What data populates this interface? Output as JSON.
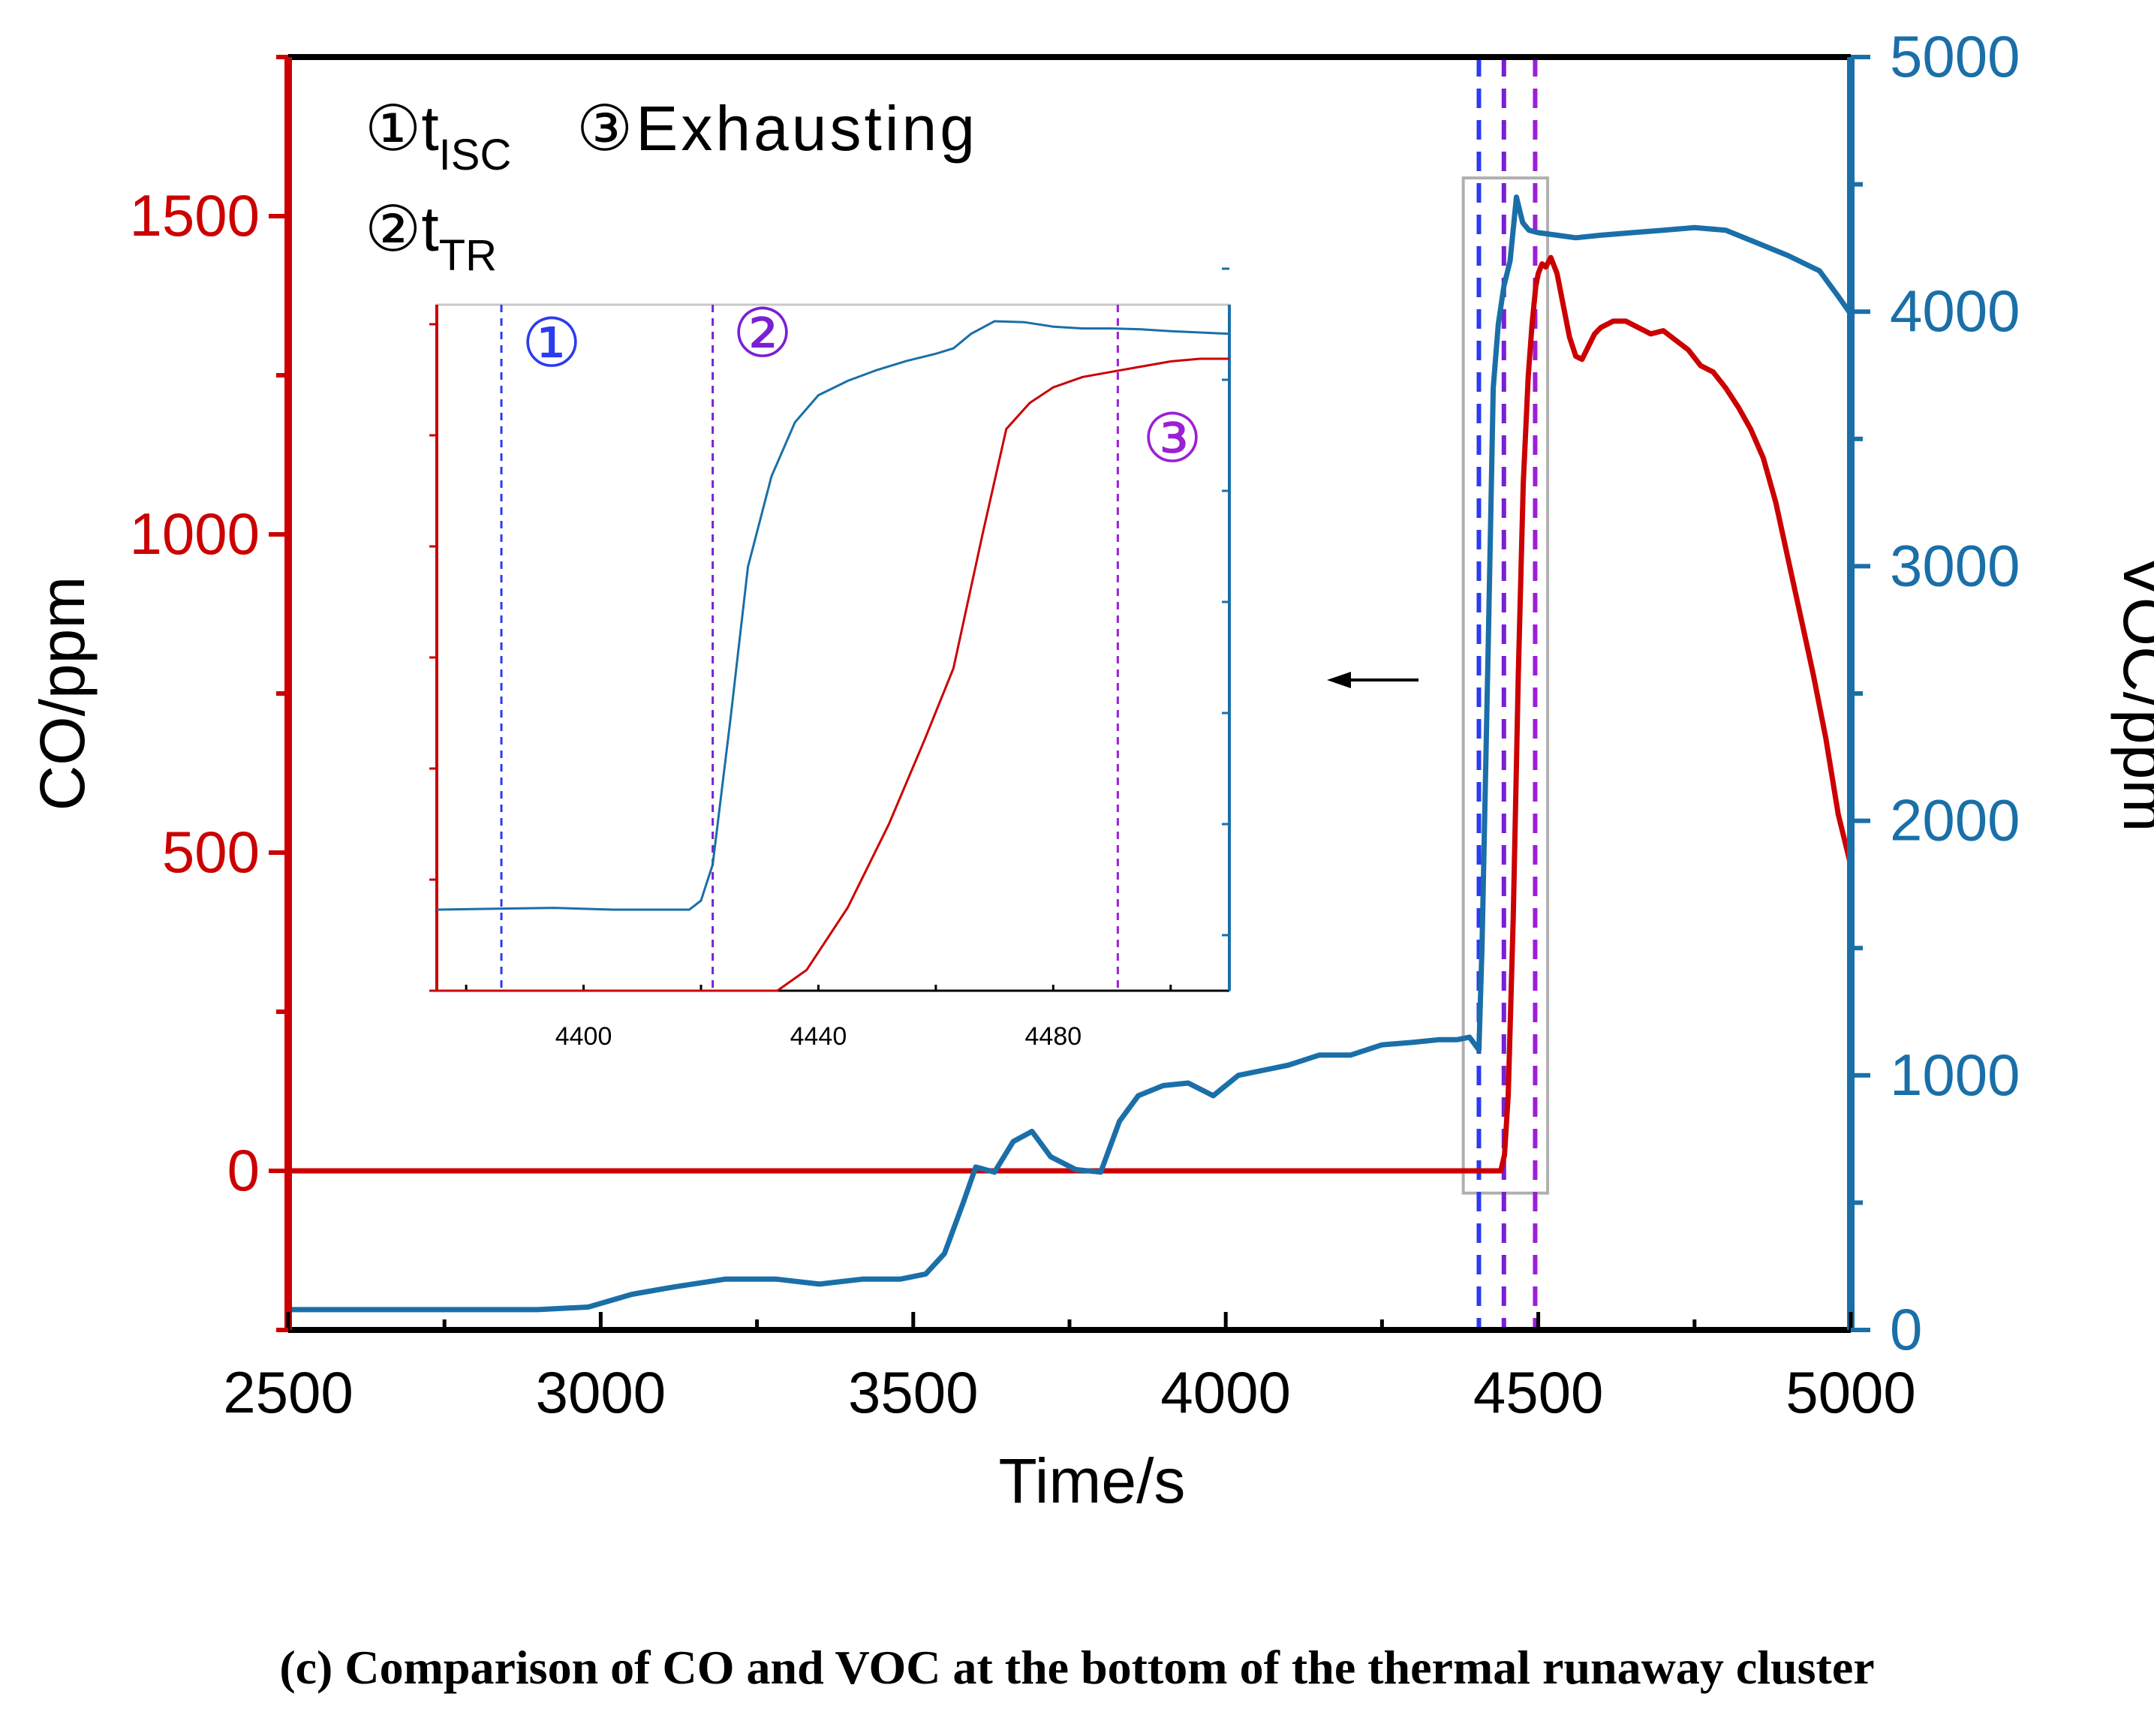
{
  "chart_data": {
    "type": "line",
    "title": "",
    "xlabel": "Time/s",
    "ylabel_left": "CO/ppm",
    "ylabel_right": "VOC/ppm",
    "xlim": [
      2500,
      5000
    ],
    "ylim_left": [
      -250,
      1750
    ],
    "ylim_right": [
      0,
      5000
    ],
    "x_ticks": [
      "2500",
      "3000",
      "3500",
      "4000",
      "4500",
      "5000"
    ],
    "y_left_ticks": [
      "0",
      "500",
      "1000",
      "1500"
    ],
    "y_right_ticks": [
      "0",
      "1000",
      "2000",
      "3000",
      "4000",
      "5000"
    ],
    "colors": {
      "co": "#cc0000",
      "voc": "#1a6fa8",
      "marker1": "#2b3cf0",
      "marker2": "#7a1fd6",
      "marker3": "#9c1fd6",
      "zoom_box": "#b0b0b0"
    },
    "legend": {
      "item1_symbol": "①",
      "item1_text": "t",
      "item1_sub": "ISC",
      "item2_symbol": "②",
      "item2_text": "t",
      "item2_sub": "TR",
      "item3_symbol": "③",
      "item3_text": "Exhausting"
    },
    "vertical_markers": [
      {
        "label": "①",
        "x": 4405
      },
      {
        "label": "②",
        "x": 4445
      },
      {
        "label": "③",
        "x": 4495
      }
    ],
    "zoom_box": {
      "x0": 4380,
      "x1": 4515,
      "co_y0": -35,
      "co_y1": 1560
    },
    "series": [
      {
        "name": "CO",
        "axis": "left",
        "unit": "ppm",
        "x": [
          2500,
          4440,
          4446,
          4452,
          4460,
          4468,
          4476,
          4484,
          4490,
          4496,
          4500,
          4506,
          4512,
          4520,
          4530,
          4540,
          4550,
          4560,
          4570,
          4580,
          4590,
          4600,
          4620,
          4640,
          4660,
          4680,
          4700,
          4720,
          4740,
          4760,
          4780,
          4800,
          4820,
          4840,
          4860,
          4880,
          4900,
          4920,
          4940,
          4960,
          4980,
          5000
        ],
        "values": [
          0,
          0,
          25,
          120,
          400,
          780,
          1080,
          1250,
          1330,
          1390,
          1410,
          1425,
          1420,
          1435,
          1410,
          1360,
          1310,
          1280,
          1275,
          1295,
          1315,
          1325,
          1335,
          1335,
          1325,
          1315,
          1320,
          1305,
          1290,
          1265,
          1255,
          1230,
          1200,
          1165,
          1120,
          1050,
          960,
          870,
          780,
          680,
          560,
          480
        ]
      },
      {
        "name": "VOC",
        "axis": "right",
        "unit": "ppm",
        "x": [
          2500,
          2700,
          2900,
          2980,
          3050,
          3120,
          3200,
          3280,
          3350,
          3420,
          3480,
          3520,
          3550,
          3580,
          3600,
          3630,
          3660,
          3690,
          3720,
          3760,
          3800,
          3830,
          3860,
          3900,
          3940,
          3980,
          4020,
          4060,
          4100,
          4150,
          4200,
          4250,
          4300,
          4340,
          4370,
          4390,
          4405,
          4410,
          4420,
          4428,
          4436,
          4445,
          4455,
          4465,
          4475,
          4485,
          4500,
          4530,
          4560,
          4600,
          4650,
          4700,
          4750,
          4800,
          4850,
          4900,
          4950,
          4980,
          5000
        ],
        "values": [
          80,
          80,
          80,
          90,
          140,
          170,
          200,
          200,
          180,
          200,
          200,
          220,
          300,
          500,
          640,
          620,
          740,
          780,
          680,
          630,
          620,
          820,
          920,
          960,
          970,
          920,
          1000,
          1020,
          1040,
          1080,
          1080,
          1120,
          1130,
          1140,
          1140,
          1150,
          1100,
          1500,
          2700,
          3700,
          3950,
          4100,
          4200,
          4450,
          4350,
          4320,
          4310,
          4300,
          4290,
          4300,
          4310,
          4320,
          4330,
          4320,
          4270,
          4220,
          4160,
          4060,
          3990
        ]
      }
    ],
    "inset": {
      "xlim": [
        4375,
        4510
      ],
      "x_ticks": [
        "4400",
        "4440",
        "4480"
      ],
      "markers": [
        {
          "label": "①",
          "x": 4386
        },
        {
          "label": "②",
          "x": 4422
        },
        {
          "label": "③",
          "x": 4491
        }
      ],
      "voc_x": [
        4375,
        4395,
        4405,
        4418,
        4420,
        4422,
        4425,
        4428,
        4432,
        4436,
        4440,
        4445,
        4450,
        4455,
        4460,
        4463,
        4466,
        4470,
        4475,
        4480,
        4485,
        4490,
        4495,
        4500,
        4510
      ],
      "voc_values": [
        1150,
        1160,
        1150,
        1150,
        1200,
        1400,
        2200,
        3050,
        3550,
        3850,
        4000,
        4080,
        4140,
        4190,
        4230,
        4260,
        4340,
        4410,
        4405,
        4380,
        4370,
        4370,
        4365,
        4355,
        4340
      ],
      "co_x": [
        4375,
        4433,
        4438,
        4445,
        4452,
        4458,
        4463,
        4468,
        4472,
        4476,
        4480,
        4485,
        4490,
        4495,
        4500,
        4505,
        4510
      ],
      "co_values": [
        0,
        0,
        40,
        160,
        320,
        480,
        620,
        880,
        1080,
        1130,
        1160,
        1180,
        1190,
        1200,
        1210,
        1215,
        1215
      ]
    },
    "arrow": {
      "direction": "left"
    }
  },
  "caption": "(c) Comparison of CO and VOC at the bottom of the thermal runaway cluster"
}
